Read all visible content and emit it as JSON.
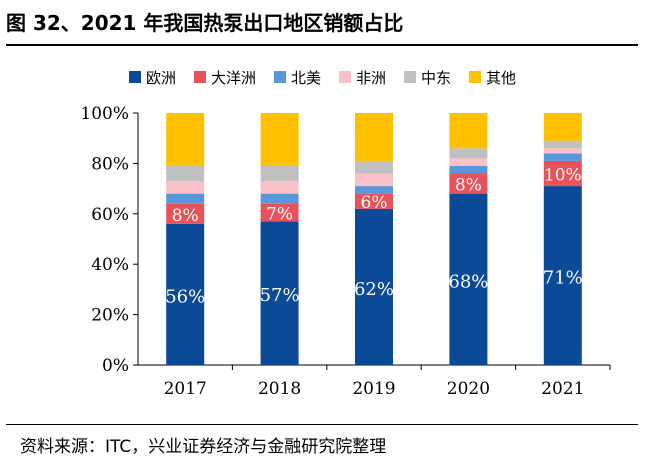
{
  "title": "图 32、2021 年我国热泵出口地区销额占比",
  "source": "资料来源：ITC，兴业证券经济与金融研究院整理",
  "chart_data": {
    "type": "bar",
    "stacked": true,
    "categories": [
      "2017",
      "2018",
      "2019",
      "2020",
      "2021"
    ],
    "ylim": [
      0,
      100
    ],
    "yticks": [
      "0%",
      "20%",
      "40%",
      "60%",
      "80%",
      "100%"
    ],
    "series": [
      {
        "name": "欧洲",
        "color": "#0b4a96",
        "values": [
          56,
          57,
          62,
          68,
          71
        ],
        "labels": [
          "56%",
          "57%",
          "62%",
          "68%",
          "71%"
        ]
      },
      {
        "name": "大洋洲",
        "color": "#e8525a",
        "values": [
          8,
          7,
          6,
          8,
          10
        ],
        "labels": [
          "8%",
          "7%",
          "6%",
          "8%",
          "10%"
        ]
      },
      {
        "name": "北美",
        "color": "#5b95da",
        "values": [
          4,
          4,
          3,
          3,
          3
        ]
      },
      {
        "name": "非洲",
        "color": "#f9c0c8",
        "values": [
          5,
          5,
          5,
          3,
          2
        ]
      },
      {
        "name": "中东",
        "color": "#c0c0c0",
        "values": [
          6,
          6,
          5,
          4,
          3
        ]
      },
      {
        "name": "其他",
        "color": "#ffc000",
        "values": [
          21,
          21,
          19,
          14,
          11
        ]
      }
    ],
    "grid": false,
    "legend_position": "top"
  }
}
